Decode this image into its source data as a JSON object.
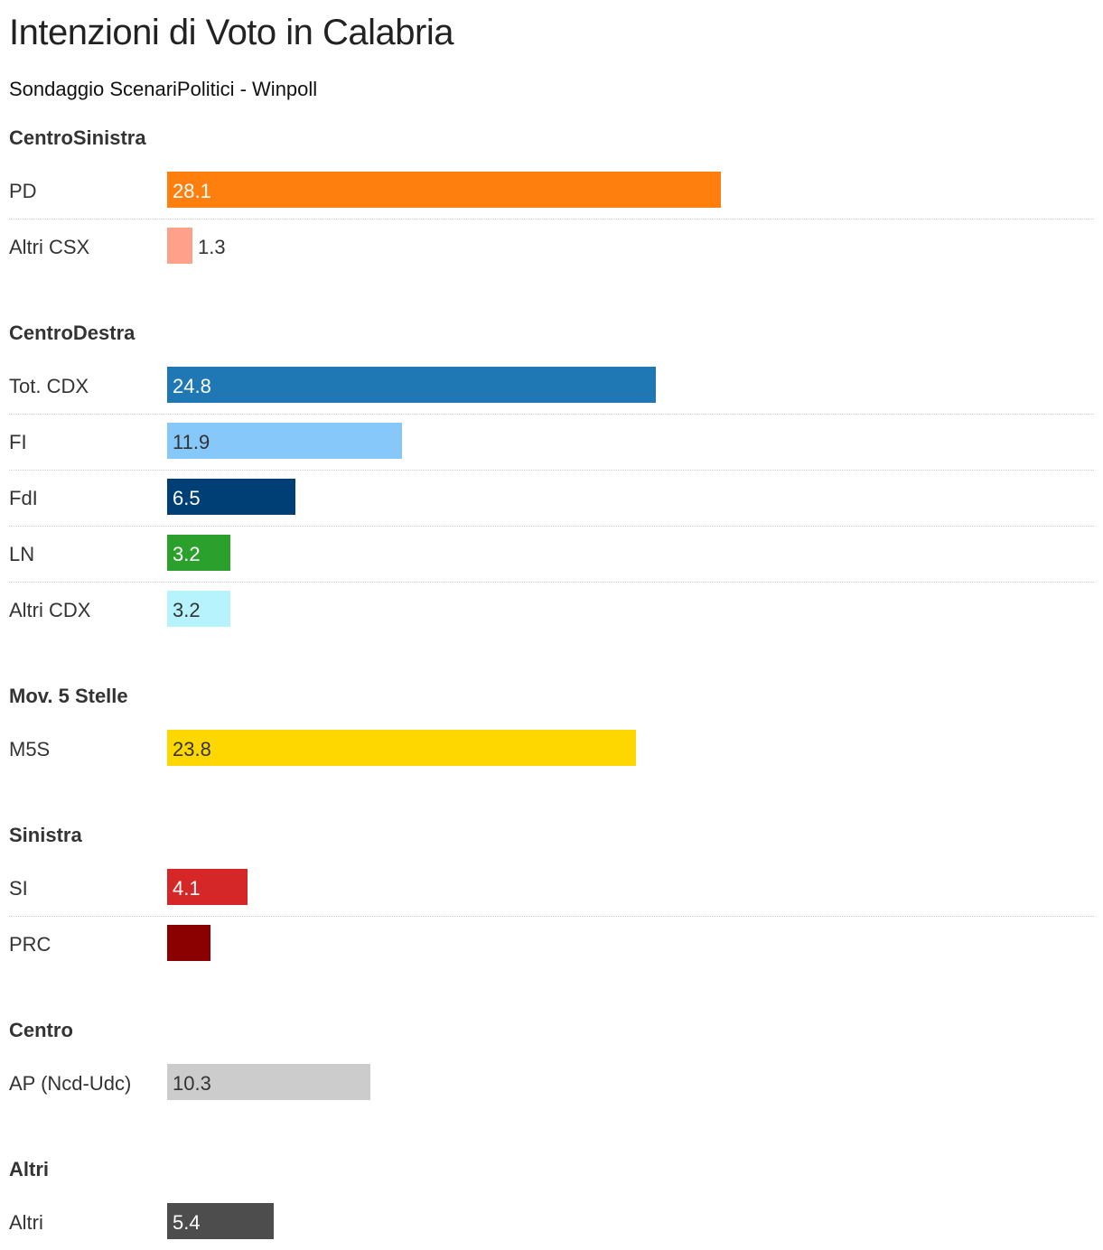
{
  "chart_data": {
    "type": "bar",
    "orientation": "horizontal",
    "title": "Intenzioni di Voto in Calabria",
    "subtitle": "Sondaggio ScenariPolitici - Winpoll",
    "xlim": [
      0,
      28.1
    ],
    "grid": false,
    "groups": [
      {
        "name": "CentroSinistra",
        "items": [
          {
            "label": "PD",
            "value": 28.1,
            "color": "#ff7f0e",
            "text_color": "#ffffff"
          },
          {
            "label": "Altri CSX",
            "value": 1.3,
            "color": "#ffa08a",
            "text_color": "#333333"
          }
        ]
      },
      {
        "name": "CentroDestra",
        "items": [
          {
            "label": "Tot. CDX",
            "value": 24.8,
            "color": "#1f77b4",
            "text_color": "#ffffff"
          },
          {
            "label": "FI",
            "value": 11.9,
            "color": "#87c8fa",
            "text_color": "#333333"
          },
          {
            "label": "FdI",
            "value": 6.5,
            "color": "#003f75",
            "text_color": "#ffffff"
          },
          {
            "label": "LN",
            "value": 3.2,
            "color": "#2ca02c",
            "text_color": "#ffffff"
          },
          {
            "label": "Altri CDX",
            "value": 3.2,
            "color": "#b6f3fc",
            "text_color": "#333333"
          }
        ]
      },
      {
        "name": "Mov. 5 Stelle",
        "items": [
          {
            "label": "M5S",
            "value": 23.8,
            "color": "#ffd700",
            "text_color": "#333333"
          }
        ]
      },
      {
        "name": "Sinistra",
        "items": [
          {
            "label": "SI",
            "value": 4.1,
            "color": "#d62728",
            "text_color": "#ffffff"
          },
          {
            "label": "PRC",
            "value": 2.2,
            "color": "#8b0000",
            "text_color": "#ffffff"
          }
        ]
      },
      {
        "name": "Centro",
        "items": [
          {
            "label": "AP (Ncd-Udc)",
            "value": 10.3,
            "color": "#cccccc",
            "text_color": "#333333"
          }
        ]
      },
      {
        "name": "Altri",
        "items": [
          {
            "label": "Altri",
            "value": 5.4,
            "color": "#4d4d4d",
            "text_color": "#ffffff"
          }
        ]
      }
    ]
  }
}
